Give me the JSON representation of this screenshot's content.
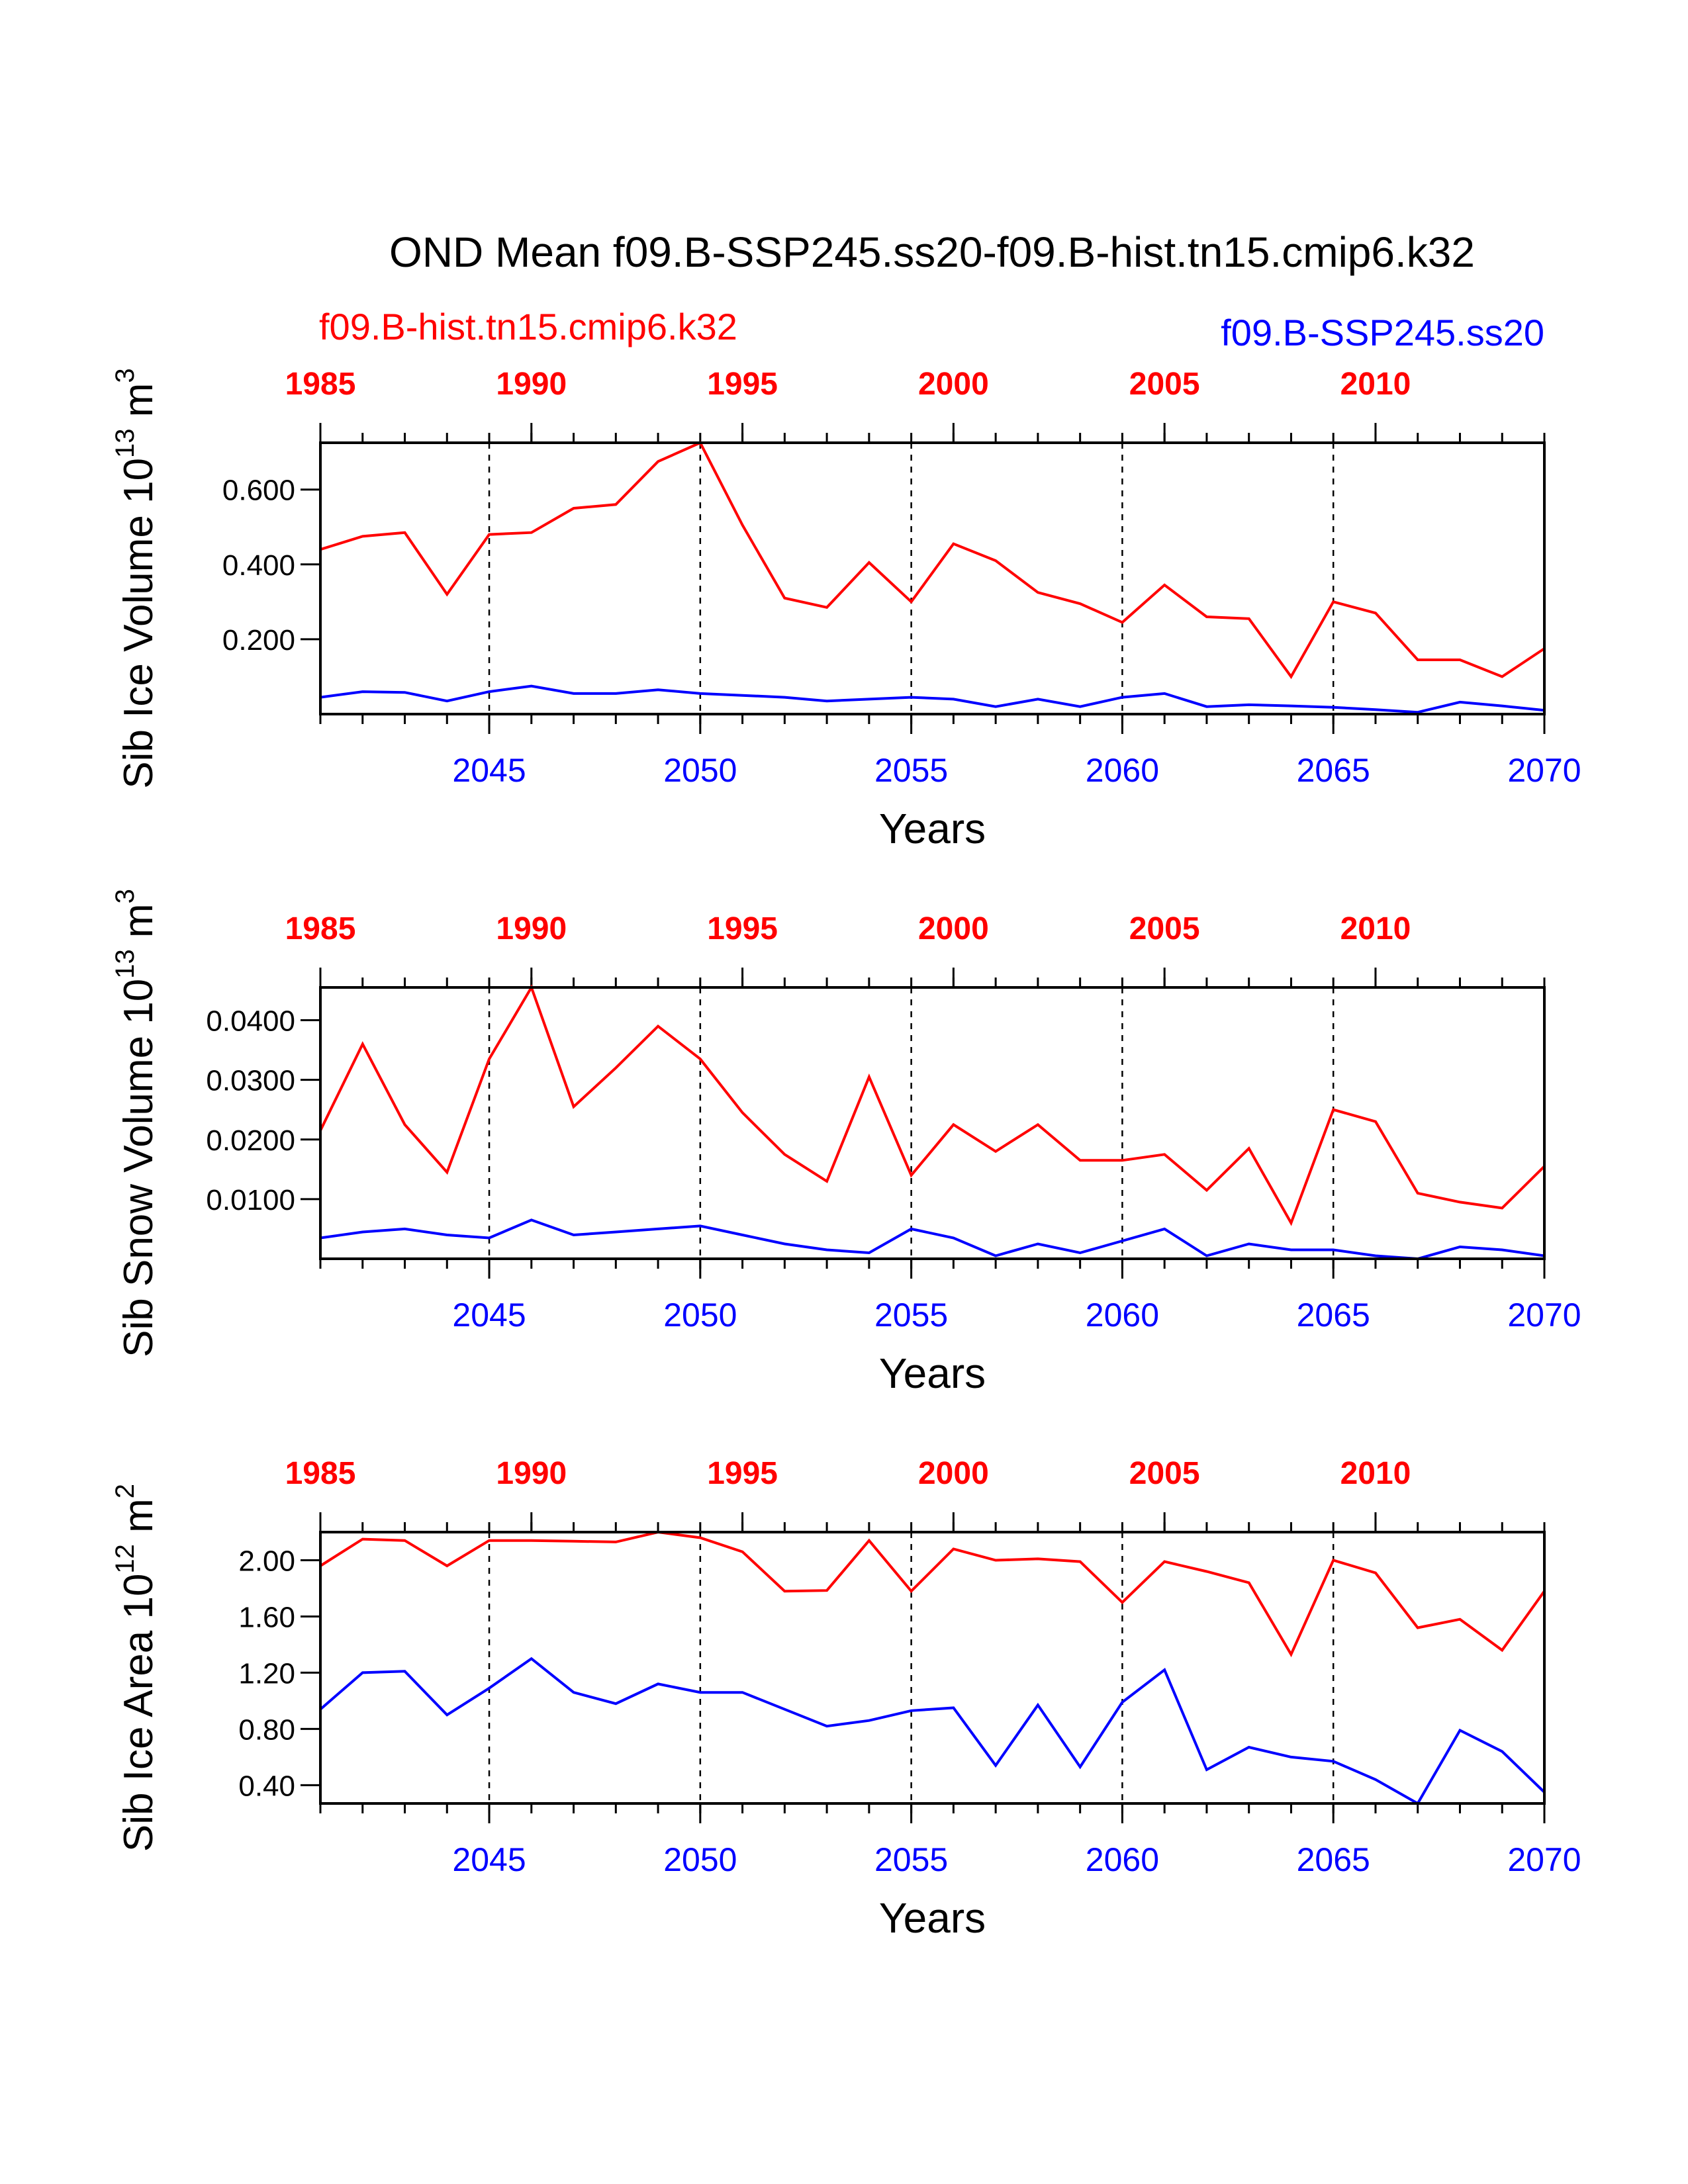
{
  "figure": {
    "title": "OND Mean f09.B-SSP245.ss20-f09.B-hist.tn15.cmip6.k32",
    "legend_left": "f09.B-hist.tn15.cmip6.k32",
    "legend_right": "f09.B-SSP245.ss20",
    "colors": {
      "hist": "#ff0000",
      "ssp": "#0000ff",
      "axis": "#000000"
    }
  },
  "chart_data": [
    {
      "type": "line",
      "ylabel": "Sib Ice Volume 10",
      "ylabel_exp": "13",
      "ylabel_unit": " m",
      "ylabel_unit_exp": "3",
      "xlabel": "Years",
      "xlim": [
        2041,
        2070
      ],
      "ylim": [
        0.0,
        0.725
      ],
      "yticks": [
        0.2,
        0.4,
        0.6
      ],
      "yticklabels": [
        "0.200",
        "0.400",
        "0.600"
      ],
      "xticks_bottom": [
        2045,
        2050,
        2055,
        2060,
        2065,
        2070
      ],
      "xticklabels_bottom": [
        "2045",
        "2050",
        "2055",
        "2060",
        "2065",
        "2070"
      ],
      "xticks_top": [
        2041,
        2046,
        2051,
        2056,
        2061,
        2066
      ],
      "xticklabels_top": [
        "1985",
        "1990",
        "1995",
        "2000",
        "2005",
        "2010"
      ],
      "vlines": [
        2045,
        2050,
        2055,
        2060,
        2065
      ],
      "x": [
        2041,
        2042,
        2043,
        2044,
        2045,
        2046,
        2047,
        2048,
        2049,
        2050,
        2051,
        2052,
        2053,
        2054,
        2055,
        2056,
        2057,
        2058,
        2059,
        2060,
        2061,
        2062,
        2063,
        2064,
        2065,
        2066,
        2067,
        2068,
        2069,
        2070
      ],
      "series": [
        {
          "name": "f09.B-hist.tn15.cmip6.k32",
          "color": "#ff0000",
          "values": [
            0.44,
            0.475,
            0.485,
            0.32,
            0.48,
            0.485,
            0.55,
            0.56,
            0.675,
            0.725,
            0.505,
            0.31,
            0.285,
            0.405,
            0.3,
            0.455,
            0.41,
            0.325,
            0.295,
            0.245,
            0.345,
            0.26,
            0.255,
            0.1,
            0.3,
            0.27,
            0.145,
            0.145,
            0.1,
            0.175
          ]
        },
        {
          "name": "f09.B-SSP245.ss20",
          "color": "#0000ff",
          "values": [
            0.045,
            0.06,
            0.058,
            0.035,
            0.06,
            0.075,
            0.055,
            0.055,
            0.065,
            0.055,
            0.05,
            0.045,
            0.035,
            0.04,
            0.045,
            0.04,
            0.02,
            0.04,
            0.02,
            0.045,
            0.055,
            0.02,
            0.025,
            0.022,
            0.018,
            0.012,
            0.005,
            0.032,
            0.022,
            0.01
          ]
        }
      ]
    },
    {
      "type": "line",
      "ylabel": "Sib Snow Volume 10",
      "ylabel_exp": "13",
      "ylabel_unit": " m",
      "ylabel_unit_exp": "3",
      "xlabel": "Years",
      "xlim": [
        2041,
        2070
      ],
      "ylim": [
        0.0,
        0.0455
      ],
      "yticks": [
        0.01,
        0.02,
        0.03,
        0.04
      ],
      "yticklabels": [
        "0.0100",
        "0.0200",
        "0.0300",
        "0.0400"
      ],
      "xticks_bottom": [
        2045,
        2050,
        2055,
        2060,
        2065,
        2070
      ],
      "xticklabels_bottom": [
        "2045",
        "2050",
        "2055",
        "2060",
        "2065",
        "2070"
      ],
      "xticks_top": [
        2041,
        2046,
        2051,
        2056,
        2061,
        2066
      ],
      "xticklabels_top": [
        "1985",
        "1990",
        "1995",
        "2000",
        "2005",
        "2010"
      ],
      "vlines": [
        2045,
        2050,
        2055,
        2060,
        2065
      ],
      "x": [
        2041,
        2042,
        2043,
        2044,
        2045,
        2046,
        2047,
        2048,
        2049,
        2050,
        2051,
        2052,
        2053,
        2054,
        2055,
        2056,
        2057,
        2058,
        2059,
        2060,
        2061,
        2062,
        2063,
        2064,
        2065,
        2066,
        2067,
        2068,
        2069,
        2070
      ],
      "series": [
        {
          "name": "f09.B-hist.tn15.cmip6.k32",
          "color": "#ff0000",
          "values": [
            0.0215,
            0.036,
            0.0225,
            0.0145,
            0.0335,
            0.0455,
            0.0255,
            0.032,
            0.039,
            0.0335,
            0.0245,
            0.0175,
            0.013,
            0.0305,
            0.014,
            0.0225,
            0.018,
            0.0225,
            0.0165,
            0.0165,
            0.0175,
            0.0115,
            0.0185,
            0.006,
            0.025,
            0.023,
            0.011,
            0.0095,
            0.0085,
            0.0155
          ]
        },
        {
          "name": "f09.B-SSP245.ss20",
          "color": "#0000ff",
          "values": [
            0.0035,
            0.0045,
            0.005,
            0.004,
            0.0035,
            0.0065,
            0.004,
            0.0045,
            0.005,
            0.0055,
            0.004,
            0.0025,
            0.0015,
            0.001,
            0.005,
            0.0035,
            0.0005,
            0.0025,
            0.001,
            0.003,
            0.005,
            0.0005,
            0.0025,
            0.0015,
            0.0015,
            0.0005,
            0.0,
            0.002,
            0.0015,
            0.0005
          ]
        }
      ]
    },
    {
      "type": "line",
      "ylabel": "Sib Ice Area 10",
      "ylabel_exp": "12",
      "ylabel_unit": " m",
      "ylabel_unit_exp": "2",
      "xlabel": "Years",
      "xlim": [
        2041,
        2070
      ],
      "ylim": [
        0.27,
        2.2
      ],
      "yticks": [
        0.4,
        0.8,
        1.2,
        1.6,
        2.0
      ],
      "yticklabels": [
        "0.40",
        "0.80",
        "1.20",
        "1.60",
        "2.00"
      ],
      "xticks_bottom": [
        2045,
        2050,
        2055,
        2060,
        2065,
        2070
      ],
      "xticklabels_bottom": [
        "2045",
        "2050",
        "2055",
        "2060",
        "2065",
        "2070"
      ],
      "xticks_top": [
        2041,
        2046,
        2051,
        2056,
        2061,
        2066
      ],
      "xticklabels_top": [
        "1985",
        "1990",
        "1995",
        "2000",
        "2005",
        "2010"
      ],
      "vlines": [
        2045,
        2050,
        2055,
        2060,
        2065
      ],
      "x": [
        2041,
        2042,
        2043,
        2044,
        2045,
        2046,
        2047,
        2048,
        2049,
        2050,
        2051,
        2052,
        2053,
        2054,
        2055,
        2056,
        2057,
        2058,
        2059,
        2060,
        2061,
        2062,
        2063,
        2064,
        2065,
        2066,
        2067,
        2068,
        2069,
        2070
      ],
      "series": [
        {
          "name": "f09.B-hist.tn15.cmip6.k32",
          "color": "#ff0000",
          "values": [
            1.96,
            2.15,
            2.14,
            1.96,
            2.14,
            2.14,
            2.135,
            2.13,
            2.2,
            2.16,
            2.06,
            1.78,
            1.785,
            2.14,
            1.78,
            2.08,
            2.0,
            2.01,
            1.99,
            1.7,
            1.99,
            1.92,
            1.84,
            1.33,
            2.0,
            1.91,
            1.52,
            1.58,
            1.36,
            1.78
          ]
        },
        {
          "name": "f09.B-SSP245.ss20",
          "color": "#0000ff",
          "values": [
            0.94,
            1.2,
            1.21,
            0.9,
            1.09,
            1.3,
            1.06,
            0.98,
            1.12,
            1.06,
            1.06,
            0.94,
            0.82,
            0.86,
            0.93,
            0.95,
            0.54,
            0.97,
            0.53,
            0.99,
            1.22,
            0.51,
            0.67,
            0.6,
            0.57,
            0.44,
            0.27,
            0.79,
            0.64,
            0.35
          ]
        }
      ]
    }
  ]
}
